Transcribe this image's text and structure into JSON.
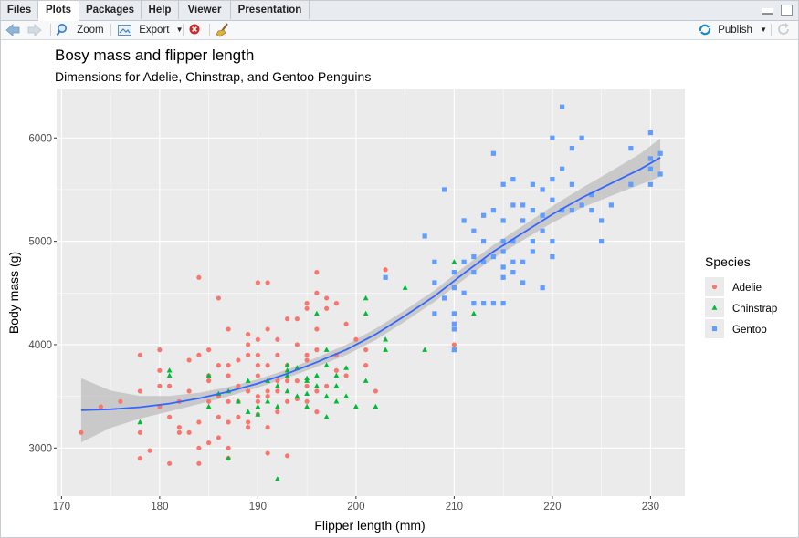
{
  "tabs": [
    {
      "label": "Files",
      "active": false
    },
    {
      "label": "Plots",
      "active": true
    },
    {
      "label": "Packages",
      "active": false
    },
    {
      "label": "Help",
      "active": false
    },
    {
      "label": "Viewer",
      "active": false
    },
    {
      "label": "Presentation",
      "active": false
    }
  ],
  "toolbar": {
    "zoom_label": "Zoom",
    "export_label": "Export",
    "publish_label": "Publish"
  },
  "icons": {
    "back": "arrow-left-icon",
    "forward": "arrow-right-icon",
    "zoom": "magnifier-icon",
    "export": "export-image-icon",
    "remove": "remove-plot-icon",
    "clear": "broom-icon",
    "publish": "publish-icon",
    "refresh": "refresh-icon"
  },
  "colors": {
    "panel_bg": "#ebebeb",
    "grid": "#ffffff",
    "smooth_line": "#3366ff",
    "ribbon": "#bdbdbd"
  },
  "chart_data": {
    "type": "scatter",
    "title": "Bosy mass and flipper length",
    "subtitle": "Dimensions for Adelie, Chinstrap, and Gentoo Penguins",
    "xlabel": "Flipper length (mm)",
    "ylabel": "Body mass (g)",
    "xlim": [
      169.5,
      233.5
    ],
    "ylim": [
      2535,
      6470
    ],
    "xticks": [
      170,
      180,
      190,
      200,
      210,
      220,
      230
    ],
    "yticks": [
      3000,
      4000,
      5000,
      6000
    ],
    "grid": true,
    "legend": {
      "title": "Species",
      "position": "right"
    },
    "series": [
      {
        "name": "Adelie",
        "color": "#f8766d",
        "shape": "circle",
        "points": [
          [
            172,
            3150
          ],
          [
            174,
            3400
          ],
          [
            176,
            3450
          ],
          [
            178,
            3900
          ],
          [
            178,
            2900
          ],
          [
            178,
            3150
          ],
          [
            178,
            3550
          ],
          [
            179,
            2975
          ],
          [
            180,
            3950
          ],
          [
            180,
            3600
          ],
          [
            180,
            3400
          ],
          [
            180,
            3750
          ],
          [
            181,
            3300
          ],
          [
            181,
            3600
          ],
          [
            181,
            2850
          ],
          [
            182,
            3150
          ],
          [
            182,
            3200
          ],
          [
            182,
            3450
          ],
          [
            183,
            3550
          ],
          [
            183,
            3150
          ],
          [
            183,
            3850
          ],
          [
            184,
            4650
          ],
          [
            184,
            3900
          ],
          [
            184,
            3250
          ],
          [
            184,
            3000
          ],
          [
            184,
            2850
          ],
          [
            185,
            3700
          ],
          [
            185,
            3950
          ],
          [
            185,
            3050
          ],
          [
            185,
            3450
          ],
          [
            185,
            3650
          ],
          [
            186,
            4450
          ],
          [
            186,
            3500
          ],
          [
            186,
            3100
          ],
          [
            186,
            3800
          ],
          [
            186,
            3300
          ],
          [
            187,
            3450
          ],
          [
            187,
            3700
          ],
          [
            187,
            3000
          ],
          [
            187,
            3800
          ],
          [
            187,
            2900
          ],
          [
            187,
            3250
          ],
          [
            187,
            4150
          ],
          [
            188,
            3600
          ],
          [
            188,
            3300
          ],
          [
            188,
            3850
          ],
          [
            188,
            3450
          ],
          [
            189,
            3550
          ],
          [
            189,
            3900
          ],
          [
            189,
            3200
          ],
          [
            189,
            4000
          ],
          [
            189,
            4100
          ],
          [
            189,
            3250
          ],
          [
            190,
            3500
          ],
          [
            190,
            3800
          ],
          [
            190,
            4600
          ],
          [
            190,
            3900
          ],
          [
            190,
            4050
          ],
          [
            190,
            3325
          ],
          [
            190,
            3450
          ],
          [
            190,
            3700
          ],
          [
            191,
            3800
          ],
          [
            191,
            3500
          ],
          [
            191,
            3200
          ],
          [
            191,
            3550
          ],
          [
            191,
            4600
          ],
          [
            191,
            2950
          ],
          [
            191,
            4150
          ],
          [
            192,
            3900
          ],
          [
            192,
            3350
          ],
          [
            192,
            3650
          ],
          [
            192,
            4050
          ],
          [
            192,
            3550
          ],
          [
            193,
            3450
          ],
          [
            193,
            3650
          ],
          [
            193,
            2925
          ],
          [
            193,
            4250
          ],
          [
            193,
            3800
          ],
          [
            194,
            3475
          ],
          [
            194,
            4000
          ],
          [
            194,
            4250
          ],
          [
            194,
            3650
          ],
          [
            195,
            3600
          ],
          [
            195,
            4350
          ],
          [
            195,
            3900
          ],
          [
            195,
            3850
          ],
          [
            195,
            4400
          ],
          [
            195,
            3450
          ],
          [
            196,
            3950
          ],
          [
            196,
            4700
          ],
          [
            196,
            3550
          ],
          [
            196,
            4150
          ],
          [
            196,
            3350
          ],
          [
            196,
            4500
          ],
          [
            197,
            4350
          ],
          [
            197,
            3600
          ],
          [
            197,
            4450
          ],
          [
            198,
            3900
          ],
          [
            198,
            4400
          ],
          [
            198,
            3750
          ],
          [
            199,
            4200
          ],
          [
            199,
            3700
          ],
          [
            200,
            4050
          ],
          [
            201,
            3800
          ],
          [
            201,
            3950
          ],
          [
            202,
            3550
          ],
          [
            203,
            4725
          ],
          [
            210,
            4000
          ]
        ]
      },
      {
        "name": "Chinstrap",
        "color": "#00ba38",
        "shape": "triangle",
        "points": [
          [
            178,
            3250
          ],
          [
            181,
            3700
          ],
          [
            181,
            3750
          ],
          [
            185,
            3700
          ],
          [
            185,
            3400
          ],
          [
            186,
            3525
          ],
          [
            187,
            2900
          ],
          [
            187,
            3550
          ],
          [
            188,
            3450
          ],
          [
            189,
            3350
          ],
          [
            189,
            3650
          ],
          [
            190,
            3325
          ],
          [
            190,
            3400
          ],
          [
            191,
            3450
          ],
          [
            191,
            3650
          ],
          [
            192,
            2700
          ],
          [
            192,
            3600
          ],
          [
            192,
            3400
          ],
          [
            193,
            3800
          ],
          [
            193,
            3750
          ],
          [
            193,
            3550
          ],
          [
            193,
            3700
          ],
          [
            194,
            3775
          ],
          [
            194,
            3500
          ],
          [
            195,
            3675
          ],
          [
            195,
            3400
          ],
          [
            195,
            3650
          ],
          [
            195,
            3525
          ],
          [
            196,
            3600
          ],
          [
            196,
            3700
          ],
          [
            196,
            4300
          ],
          [
            197,
            3500
          ],
          [
            197,
            3300
          ],
          [
            197,
            3800
          ],
          [
            197,
            3950
          ],
          [
            198,
            3700
          ],
          [
            198,
            3600
          ],
          [
            198,
            3450
          ],
          [
            199,
            3500
          ],
          [
            199,
            3775
          ],
          [
            200,
            3400
          ],
          [
            201,
            4300
          ],
          [
            201,
            4450
          ],
          [
            201,
            3650
          ],
          [
            202,
            3400
          ],
          [
            203,
            4050
          ],
          [
            203,
            3950
          ],
          [
            205,
            4550
          ],
          [
            207,
            3950
          ],
          [
            210,
            4800
          ],
          [
            210,
            4300
          ],
          [
            210,
            3950
          ],
          [
            212,
            4300
          ]
        ]
      },
      {
        "name": "Gentoo",
        "color": "#619cff",
        "shape": "square",
        "points": [
          [
            203,
            4650
          ],
          [
            207,
            5050
          ],
          [
            208,
            4300
          ],
          [
            208,
            4600
          ],
          [
            208,
            4800
          ],
          [
            209,
            5500
          ],
          [
            209,
            4450
          ],
          [
            210,
            4700
          ],
          [
            210,
            4300
          ],
          [
            210,
            4550
          ],
          [
            210,
            4200
          ],
          [
            210,
            4150
          ],
          [
            210,
            3950
          ],
          [
            211,
            4800
          ],
          [
            211,
            5200
          ],
          [
            211,
            4500
          ],
          [
            212,
            4700
          ],
          [
            212,
            4400
          ],
          [
            212,
            5100
          ],
          [
            212,
            4850
          ],
          [
            213,
            4800
          ],
          [
            213,
            5000
          ],
          [
            213,
            5250
          ],
          [
            213,
            4400
          ],
          [
            214,
            5850
          ],
          [
            214,
            4400
          ],
          [
            214,
            5300
          ],
          [
            214,
            4850
          ],
          [
            215,
            4650
          ],
          [
            215,
            5000
          ],
          [
            215,
            5550
          ],
          [
            215,
            4400
          ],
          [
            215,
            5200
          ],
          [
            215,
            4750
          ],
          [
            215,
            4900
          ],
          [
            216,
            5350
          ],
          [
            216,
            4700
          ],
          [
            216,
            4800
          ],
          [
            216,
            5600
          ],
          [
            216,
            5000
          ],
          [
            217,
            5200
          ],
          [
            217,
            4600
          ],
          [
            217,
            4800
          ],
          [
            217,
            5350
          ],
          [
            218,
            5300
          ],
          [
            218,
            4900
          ],
          [
            218,
            5550
          ],
          [
            218,
            5000
          ],
          [
            219,
            5250
          ],
          [
            219,
            4550
          ],
          [
            219,
            5500
          ],
          [
            219,
            5100
          ],
          [
            220,
            5400
          ],
          [
            220,
            5600
          ],
          [
            220,
            4850
          ],
          [
            220,
            6000
          ],
          [
            220,
            5000
          ],
          [
            221,
            5300
          ],
          [
            221,
            5700
          ],
          [
            221,
            6300
          ],
          [
            222,
            5550
          ],
          [
            222,
            5900
          ],
          [
            222,
            5300
          ],
          [
            223,
            6000
          ],
          [
            223,
            5350
          ],
          [
            224,
            5450
          ],
          [
            224,
            5300
          ],
          [
            225,
            5200
          ],
          [
            225,
            5000
          ],
          [
            226,
            5350
          ],
          [
            228,
            5900
          ],
          [
            228,
            5550
          ],
          [
            230,
            5800
          ],
          [
            230,
            5700
          ],
          [
            230,
            5550
          ],
          [
            230,
            6050
          ],
          [
            231,
            5650
          ],
          [
            231,
            5850
          ]
        ]
      }
    ],
    "smooth": {
      "x": [
        172,
        175,
        178,
        181,
        184,
        187,
        190,
        193,
        196,
        199,
        202,
        205,
        208,
        211,
        214,
        217,
        220,
        223,
        226,
        229,
        231
      ],
      "y": [
        3365,
        3375,
        3395,
        3430,
        3480,
        3545,
        3625,
        3720,
        3830,
        3950,
        4100,
        4280,
        4470,
        4690,
        4900,
        5080,
        5260,
        5420,
        5560,
        5700,
        5810
      ],
      "se": [
        310,
        180,
        110,
        75,
        55,
        45,
        40,
        40,
        45,
        50,
        55,
        55,
        55,
        60,
        65,
        70,
        80,
        95,
        120,
        150,
        185
      ]
    }
  }
}
